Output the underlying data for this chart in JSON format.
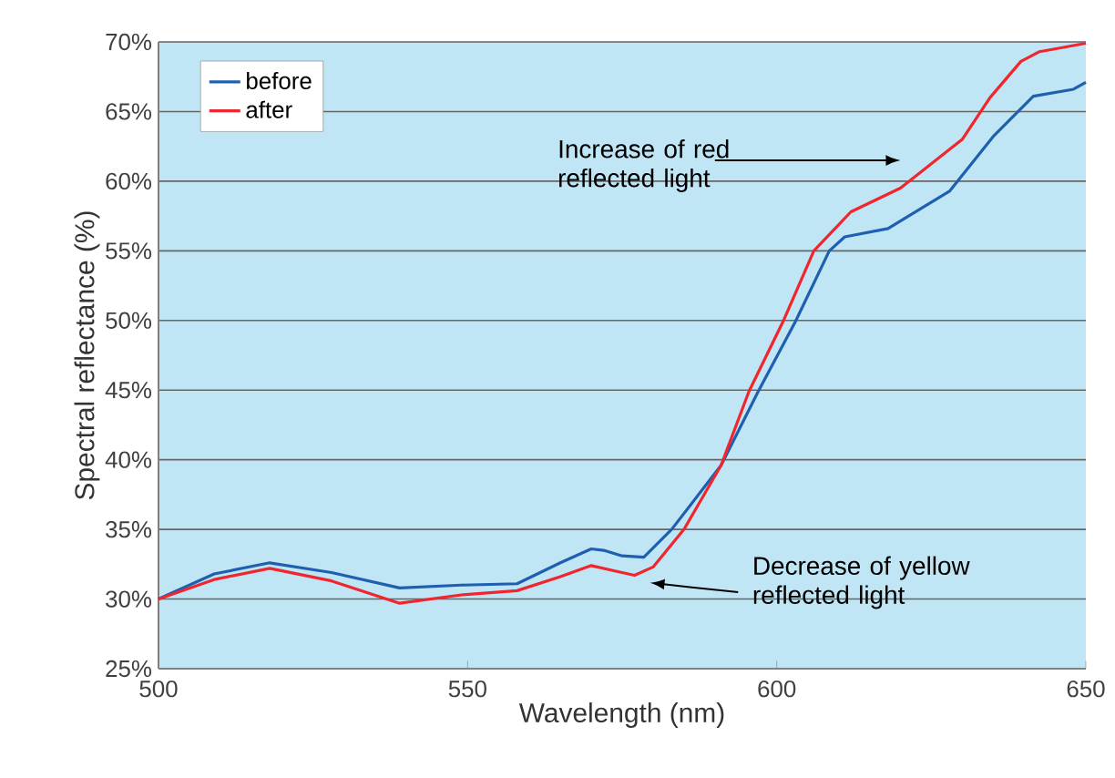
{
  "chart_data": {
    "type": "line",
    "xlabel": "Wavelength (nm)",
    "ylabel": "Spectral reflectance (%)",
    "xlim": [
      500,
      650
    ],
    "ylim": [
      25,
      70
    ],
    "xticks": [
      500,
      550,
      600,
      650
    ],
    "yticks": [
      {
        "value": 25,
        "label": "25%"
      },
      {
        "value": 30,
        "label": "30%"
      },
      {
        "value": 35,
        "label": "35%"
      },
      {
        "value": 40,
        "label": "40%"
      },
      {
        "value": 45,
        "label": "45%"
      },
      {
        "value": 50,
        "label": "50%"
      },
      {
        "value": 55,
        "label": "55%"
      },
      {
        "value": 60,
        "label": "60%"
      },
      {
        "value": 65,
        "label": "65%"
      },
      {
        "value": 70,
        "label": "70%"
      }
    ],
    "grid": "y",
    "legend": "top left",
    "marker": "none",
    "line_style": "solid",
    "series": [
      {
        "name": "before",
        "color": "#1f5fb0",
        "x": [
          500,
          509,
          518,
          528,
          539,
          549,
          558,
          565,
          570,
          572,
          575,
          578.5,
          583,
          591,
          597,
          603,
          608.5,
          611,
          618,
          628,
          635,
          641.5,
          648,
          650
        ],
        "values": [
          30.0,
          31.8,
          32.6,
          31.9,
          30.8,
          31.0,
          31.1,
          32.6,
          33.6,
          33.5,
          33.1,
          33.0,
          35.0,
          39.6,
          44.9,
          49.9,
          55.0,
          56.0,
          56.6,
          59.3,
          63.2,
          66.1,
          66.6,
          67.1
        ]
      },
      {
        "name": "after",
        "color": "#f0252d",
        "x": [
          500,
          509,
          518,
          528,
          539,
          549,
          558,
          565,
          570,
          574,
          577,
          580,
          585,
          591,
          595.5,
          601,
          606,
          612,
          620,
          630,
          634.5,
          639.5,
          642.5,
          650
        ],
        "values": [
          30.0,
          31.4,
          32.2,
          31.3,
          29.7,
          30.3,
          30.6,
          31.6,
          32.4,
          32.0,
          31.7,
          32.3,
          35.0,
          39.6,
          44.9,
          49.9,
          55.0,
          57.8,
          59.5,
          63.0,
          66.0,
          68.6,
          69.3,
          69.9
        ]
      }
    ],
    "annotations": [
      "Increase of red reflected light",
      "Decrease of yellow reflected light"
    ]
  }
}
